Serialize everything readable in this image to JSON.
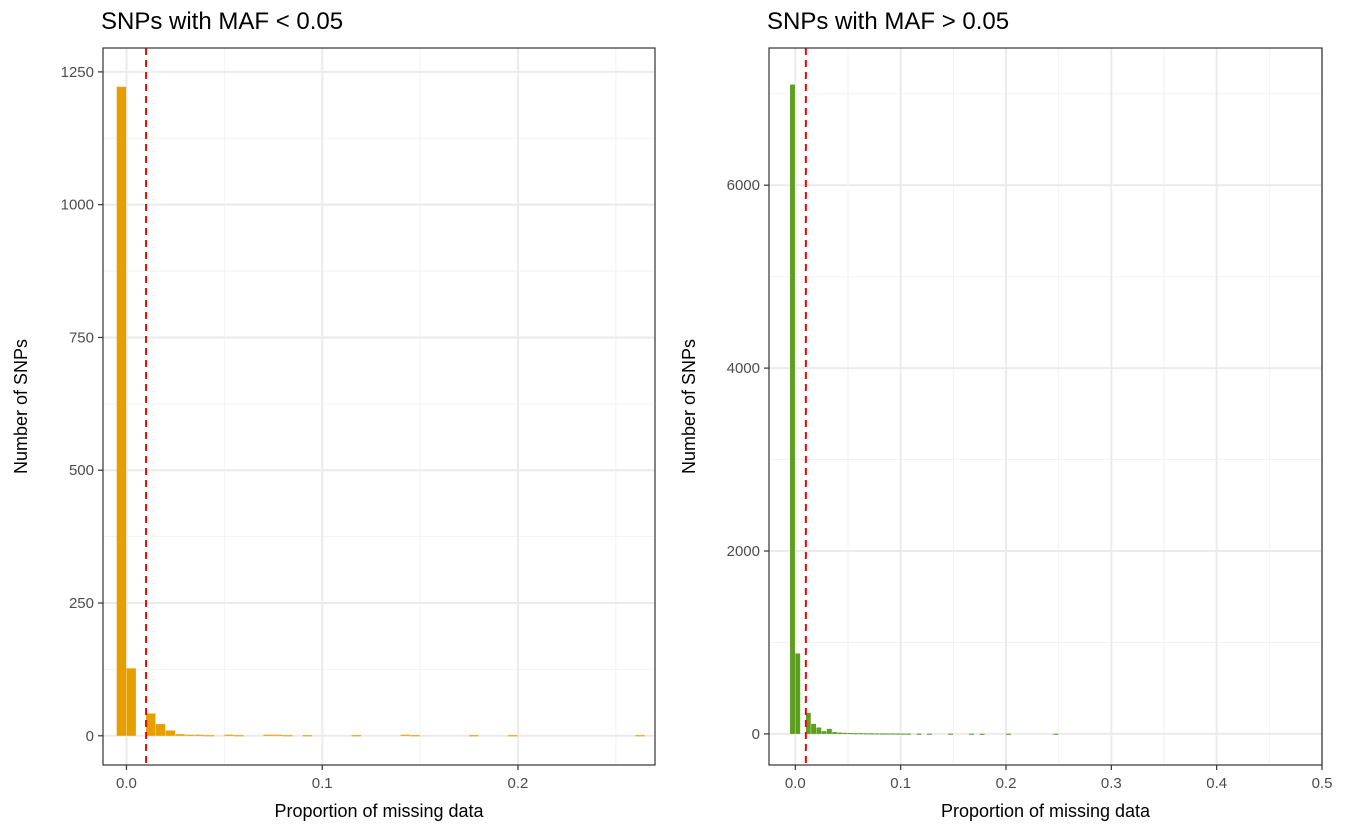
{
  "chart_data": [
    {
      "type": "bar",
      "title": "SNPs with MAF < 0.05",
      "xlabel": "Proportion of missing data",
      "ylabel": "Number of SNPs",
      "xlim": [
        -0.012,
        0.27
      ],
      "ylim": [
        -55,
        1295
      ],
      "xticks": [
        0.0,
        0.1,
        0.2
      ],
      "xtick_labels": [
        "0.0",
        "0.1",
        "0.2"
      ],
      "xminor": [
        0.05,
        0.15,
        0.25
      ],
      "yticks": [
        0,
        250,
        500,
        750,
        1000,
        1250
      ],
      "ytick_labels": [
        "0",
        "250",
        "500",
        "750",
        "1000",
        "1250"
      ],
      "yminor": [
        125,
        375,
        625,
        875,
        1125
      ],
      "bin_width": 0.005,
      "bar_color": "#E69F00",
      "vline": {
        "x": 0.01,
        "color": "#FF0000"
      },
      "grid": true,
      "bins": [
        {
          "x": -0.0025,
          "y": 1222
        },
        {
          "x": 0.0025,
          "y": 127
        },
        {
          "x": 0.0125,
          "y": 42
        },
        {
          "x": 0.0175,
          "y": 22
        },
        {
          "x": 0.0225,
          "y": 10
        },
        {
          "x": 0.0275,
          "y": 3
        },
        {
          "x": 0.0325,
          "y": 2
        },
        {
          "x": 0.0375,
          "y": 2
        },
        {
          "x": 0.0425,
          "y": 1
        },
        {
          "x": 0.0525,
          "y": 2
        },
        {
          "x": 0.0575,
          "y": 1
        },
        {
          "x": 0.0725,
          "y": 2
        },
        {
          "x": 0.0775,
          "y": 2
        },
        {
          "x": 0.0825,
          "y": 1
        },
        {
          "x": 0.0925,
          "y": 1
        },
        {
          "x": 0.1175,
          "y": 1
        },
        {
          "x": 0.1425,
          "y": 2
        },
        {
          "x": 0.1475,
          "y": 1
        },
        {
          "x": 0.1775,
          "y": 1
        },
        {
          "x": 0.1975,
          "y": 1
        },
        {
          "x": 0.2625,
          "y": 1
        }
      ]
    },
    {
      "type": "bar",
      "title": "SNPs with MAF > 0.05",
      "xlabel": "Proportion of missing data",
      "ylabel": "Number of SNPs",
      "xlim": [
        -0.025,
        0.5
      ],
      "ylim": [
        -340,
        7500
      ],
      "xticks": [
        0.0,
        0.1,
        0.2,
        0.3,
        0.4,
        0.5
      ],
      "xtick_labels": [
        "0.0",
        "0.1",
        "0.2",
        "0.3",
        "0.4",
        "0.5"
      ],
      "xminor": [
        0.05,
        0.15,
        0.25,
        0.35,
        0.45
      ],
      "yticks": [
        0,
        2000,
        4000,
        6000
      ],
      "ytick_labels": [
        "0",
        "2000",
        "4000",
        "6000"
      ],
      "yminor": [
        1000,
        3000,
        5000,
        7000
      ],
      "bin_width": 0.005,
      "bar_color": "#5C9E1E",
      "vline": {
        "x": 0.01,
        "color": "#FF0000"
      },
      "grid": true,
      "bins": [
        {
          "x": -0.0025,
          "y": 7100
        },
        {
          "x": 0.0025,
          "y": 880
        },
        {
          "x": 0.0125,
          "y": 230
        },
        {
          "x": 0.0175,
          "y": 110
        },
        {
          "x": 0.0225,
          "y": 70
        },
        {
          "x": 0.0275,
          "y": 30
        },
        {
          "x": 0.0325,
          "y": 55
        },
        {
          "x": 0.0375,
          "y": 20
        },
        {
          "x": 0.0425,
          "y": 15
        },
        {
          "x": 0.0475,
          "y": 12
        },
        {
          "x": 0.0525,
          "y": 10
        },
        {
          "x": 0.0575,
          "y": 8
        },
        {
          "x": 0.0625,
          "y": 8
        },
        {
          "x": 0.0675,
          "y": 6
        },
        {
          "x": 0.0725,
          "y": 6
        },
        {
          "x": 0.0775,
          "y": 5
        },
        {
          "x": 0.0825,
          "y": 5
        },
        {
          "x": 0.0875,
          "y": 4
        },
        {
          "x": 0.0925,
          "y": 4
        },
        {
          "x": 0.0975,
          "y": 4
        },
        {
          "x": 0.1025,
          "y": 3
        },
        {
          "x": 0.1075,
          "y": 3
        },
        {
          "x": 0.1175,
          "y": 3
        },
        {
          "x": 0.1275,
          "y": 2
        },
        {
          "x": 0.1475,
          "y": 2
        },
        {
          "x": 0.1675,
          "y": 2
        },
        {
          "x": 0.1775,
          "y": 1
        },
        {
          "x": 0.2025,
          "y": 1
        },
        {
          "x": 0.2475,
          "y": 1
        }
      ]
    }
  ]
}
